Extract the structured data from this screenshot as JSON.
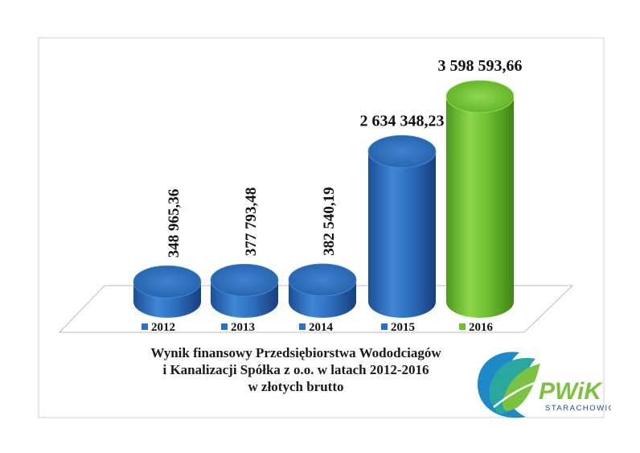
{
  "chart_data": {
    "type": "bar",
    "categories": [
      "2012",
      "2013",
      "2014",
      "2015",
      "2016"
    ],
    "values": [
      348965.36,
      377793.48,
      382540.19,
      2634348.23,
      3598593.66
    ],
    "value_labels": [
      "348 965,36",
      "377 793,48",
      "382 540,19",
      "2 634 348,23",
      "3 598 593,66"
    ],
    "bar_colors": [
      "#2e6fbf",
      "#2e6fbf",
      "#2e6fbf",
      "#2e6fbf",
      "#6cbf2f"
    ],
    "legend_placement": "bottom",
    "grid": false
  },
  "caption": {
    "line1": "Wynik finansowy Przedsiębiorstwa Wododciagów",
    "line2": "i Kanalizacji Spółka z o.o. w latach 2012-2016",
    "line3": "w złotych brutto"
  },
  "logo": {
    "name": "PWiK",
    "city": "STARACHOWICE",
    "colors": [
      "#1e88c8",
      "#7cc242",
      "#2aa8a0"
    ]
  }
}
